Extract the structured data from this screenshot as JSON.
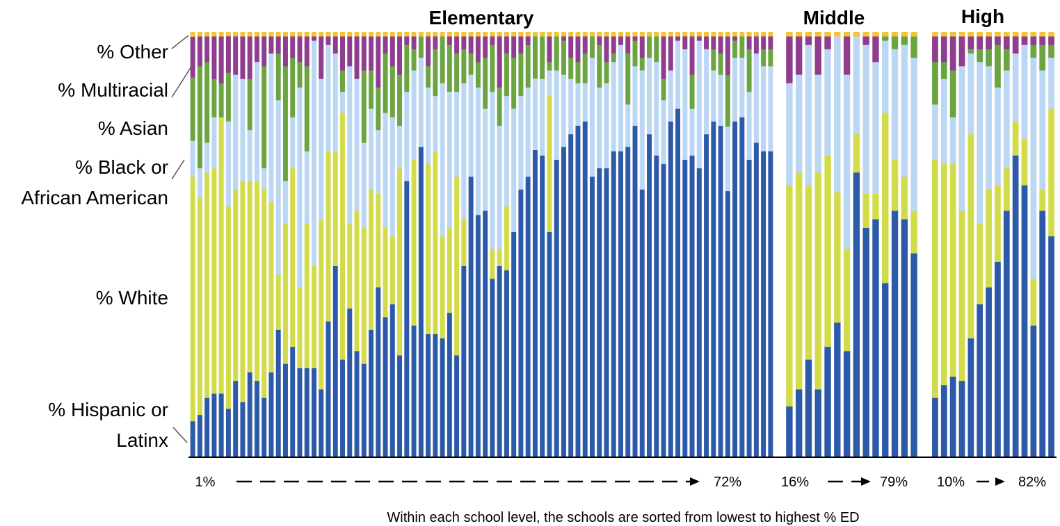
{
  "chart_data": {
    "type": "bar",
    "stacked": true,
    "ylim": [
      0,
      100
    ],
    "grid": false,
    "series": [
      {
        "name": "% Hispanic or Latinx",
        "color": "#2c5aa8"
      },
      {
        "name": "% White",
        "color": "#d2dc4b"
      },
      {
        "name": "% Black or African American",
        "color": "#bcd7f3"
      },
      {
        "name": "% Asian",
        "color": "#6aa541"
      },
      {
        "name": "% Multiracial",
        "color": "#8e3d8f"
      },
      {
        "name": "% Other",
        "color": "#f3c43a"
      }
    ],
    "left_labels": [
      {
        "series": 5,
        "lines": [
          "% Other"
        ]
      },
      {
        "series": 4,
        "lines": [
          "% Multiracial"
        ]
      },
      {
        "series": 3,
        "lines": [
          "% Asian"
        ]
      },
      {
        "series": 2,
        "lines": [
          "% Black or",
          "African American"
        ]
      },
      {
        "series": 1,
        "lines": [
          "% White"
        ]
      },
      {
        "series": 0,
        "lines": [
          "% Hispanic or",
          "Latinx"
        ]
      }
    ],
    "groups": [
      {
        "title": "Elementary",
        "ed_start": "1%",
        "ed_end": "72%",
        "bars": [
          [
            8,
            54,
            8,
            14,
            9,
            1
          ],
          [
            10,
            51,
            7,
            24,
            7,
            1
          ],
          [
            14,
            53,
            7,
            19,
            6,
            1
          ],
          [
            15,
            53,
            12,
            9,
            10,
            1
          ],
          [
            15,
            65,
            0,
            8,
            11,
            1
          ],
          [
            12,
            50,
            21,
            12,
            9,
            1
          ],
          [
            18,
            45,
            27,
            0,
            9,
            1
          ],
          [
            13,
            52,
            24,
            0,
            10,
            1
          ],
          [
            20,
            45,
            12,
            12,
            10,
            1
          ],
          [
            18,
            47,
            28,
            0,
            6,
            1
          ],
          [
            14,
            49,
            5,
            24,
            7,
            1
          ],
          [
            20,
            40,
            35,
            0,
            4,
            1
          ],
          [
            30,
            13,
            41,
            11,
            4,
            1
          ],
          [
            22,
            33,
            10,
            27,
            7,
            1
          ],
          [
            26,
            42,
            12,
            14,
            5,
            1
          ],
          [
            21,
            19,
            47,
            6,
            6,
            1
          ],
          [
            21,
            34,
            17,
            20,
            7,
            1
          ],
          [
            21,
            24,
            53,
            0,
            1,
            1
          ],
          [
            16,
            40,
            33,
            0,
            10,
            1
          ],
          [
            32,
            40,
            25,
            0,
            2,
            1
          ],
          [
            45,
            27,
            23,
            0,
            4,
            1
          ],
          [
            23,
            58,
            5,
            5,
            8,
            1
          ],
          [
            35,
            20,
            37,
            0,
            7,
            1
          ],
          [
            25,
            33,
            31,
            0,
            10,
            1
          ],
          [
            22,
            32,
            20,
            17,
            8,
            1
          ],
          [
            30,
            33,
            19,
            9,
            8,
            1
          ],
          [
            40,
            22,
            15,
            10,
            12,
            1
          ],
          [
            33,
            21,
            27,
            14,
            4,
            1
          ],
          [
            36,
            16,
            28,
            12,
            7,
            1
          ],
          [
            24,
            44,
            10,
            12,
            9,
            1
          ],
          [
            65,
            0,
            21,
            11,
            2,
            1
          ],
          [
            31,
            39,
            21,
            5,
            3,
            1
          ],
          [
            73,
            0,
            21,
            5,
            0,
            1
          ],
          [
            29,
            40,
            18,
            5,
            7,
            1
          ],
          [
            29,
            43,
            13,
            11,
            3,
            1
          ],
          [
            28,
            24,
            36,
            11,
            0,
            1
          ],
          [
            34,
            20,
            32,
            11,
            2,
            1
          ],
          [
            24,
            42,
            20,
            9,
            4,
            1
          ],
          [
            45,
            11,
            32,
            8,
            3,
            1
          ],
          [
            66,
            0,
            24,
            5,
            4,
            1
          ],
          [
            57,
            0,
            30,
            6,
            6,
            1
          ],
          [
            58,
            0,
            24,
            12,
            5,
            1
          ],
          [
            42,
            7,
            37,
            11,
            2,
            1
          ],
          [
            45,
            4,
            29,
            9,
            12,
            1
          ],
          [
            44,
            15,
            26,
            10,
            4,
            1
          ],
          [
            53,
            0,
            29,
            12,
            5,
            1
          ],
          [
            63,
            0,
            22,
            10,
            4,
            1
          ],
          [
            66,
            0,
            21,
            10,
            2,
            1
          ],
          [
            73,
            0,
            17,
            10,
            0,
            1
          ],
          [
            71,
            0,
            18,
            10,
            0,
            1
          ],
          [
            53,
            32,
            6,
            2,
            6,
            1
          ],
          [
            70,
            0,
            21,
            8,
            0,
            1
          ],
          [
            73,
            0,
            17,
            8,
            1,
            1
          ],
          [
            76,
            0,
            13,
            5,
            5,
            1
          ],
          [
            78,
            0,
            10,
            5,
            6,
            1
          ],
          [
            79,
            0,
            9,
            7,
            4,
            1
          ],
          [
            66,
            0,
            28,
            5,
            0,
            1
          ],
          [
            68,
            0,
            19,
            10,
            2,
            1
          ],
          [
            68,
            0,
            20,
            5,
            6,
            1
          ],
          [
            72,
            0,
            21,
            2,
            4,
            1
          ],
          [
            72,
            0,
            25,
            0,
            2,
            1
          ],
          [
            73,
            0,
            10,
            12,
            4,
            1
          ],
          [
            78,
            0,
            14,
            6,
            1,
            1
          ],
          [
            63,
            0,
            28,
            3,
            5,
            1
          ],
          [
            76,
            0,
            18,
            5,
            0,
            1
          ],
          [
            71,
            0,
            22,
            6,
            0,
            1
          ],
          [
            69,
            0,
            15,
            5,
            10,
            1
          ],
          [
            79,
            0,
            12,
            0,
            8,
            1
          ],
          [
            82,
            0,
            16,
            0,
            1,
            1
          ],
          [
            70,
            0,
            26,
            0,
            3,
            1
          ],
          [
            71,
            0,
            11,
            8,
            9,
            1
          ],
          [
            68,
            0,
            30,
            0,
            1,
            1
          ],
          [
            76,
            0,
            20,
            0,
            3,
            1
          ],
          [
            79,
            0,
            12,
            5,
            3,
            1
          ],
          [
            78,
            0,
            12,
            5,
            4,
            1
          ],
          [
            62,
            0,
            15,
            12,
            9,
            1
          ],
          [
            79,
            0,
            15,
            4,
            1,
            1
          ],
          [
            80,
            0,
            14,
            5,
            0,
            1
          ],
          [
            70,
            0,
            16,
            10,
            3,
            1
          ],
          [
            74,
            0,
            21,
            0,
            4,
            1
          ],
          [
            72,
            0,
            20,
            4,
            3,
            1
          ],
          [
            72,
            0,
            20,
            4,
            3,
            1
          ]
        ]
      },
      {
        "title": "Middle",
        "ed_start": "16%",
        "ed_end": "79%",
        "bars": [
          [
            12,
            52,
            24,
            0,
            11,
            1
          ],
          [
            16,
            51,
            23,
            0,
            9,
            1
          ],
          [
            23,
            41,
            33,
            0,
            2,
            1
          ],
          [
            16,
            51,
            23,
            0,
            9,
            1
          ],
          [
            26,
            45,
            25,
            0,
            3,
            1
          ],
          [
            32,
            31,
            37,
            0,
            0,
            1
          ],
          [
            25,
            24,
            41,
            0,
            9,
            1
          ],
          [
            67,
            9,
            23,
            0,
            0,
            1
          ],
          [
            54,
            8,
            35,
            0,
            2,
            1
          ],
          [
            56,
            6,
            31,
            0,
            6,
            1
          ],
          [
            41,
            40,
            17,
            1,
            0,
            1
          ],
          [
            58,
            12,
            26,
            3,
            0,
            1
          ],
          [
            56,
            10,
            31,
            2,
            0,
            1
          ],
          [
            48,
            10,
            36,
            5,
            0,
            1
          ]
        ]
      },
      {
        "title": "High",
        "ed_start": "10%",
        "ed_end": "82%",
        "bars": [
          [
            14,
            56,
            13,
            10,
            6,
            1
          ],
          [
            17,
            52,
            20,
            4,
            6,
            1
          ],
          [
            19,
            50,
            11,
            11,
            8,
            1
          ],
          [
            18,
            40,
            34,
            0,
            7,
            1
          ],
          [
            28,
            48,
            19,
            1,
            3,
            1
          ],
          [
            36,
            19,
            38,
            3,
            3,
            1
          ],
          [
            40,
            23,
            29,
            4,
            3,
            1
          ],
          [
            46,
            18,
            23,
            10,
            2,
            1
          ],
          [
            58,
            10,
            23,
            5,
            3,
            1
          ],
          [
            71,
            8,
            16,
            0,
            4,
            1
          ],
          [
            64,
            11,
            22,
            0,
            2,
            1
          ],
          [
            31,
            11,
            52,
            3,
            2,
            1
          ],
          [
            58,
            5,
            28,
            6,
            2,
            1
          ],
          [
            52,
            30,
            12,
            3,
            2,
            1
          ]
        ]
      }
    ],
    "footnote": "Within each school level, the schools are sorted from lowest to highest % ED"
  }
}
